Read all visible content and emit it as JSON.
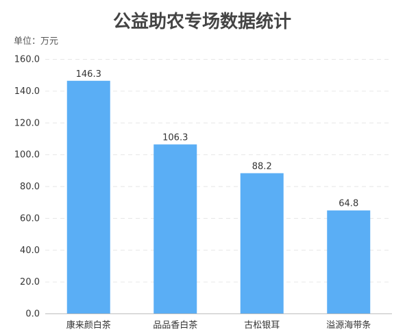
{
  "chart_data": {
    "type": "bar",
    "title": "公益助农专场数据统计",
    "unit_label": "单位：万元",
    "categories": [
      "康来颜白茶",
      "品品香白茶",
      "古松银耳",
      "溢源海带条"
    ],
    "values": [
      146.3,
      106.3,
      88.2,
      64.8
    ],
    "value_labels": [
      "146.3",
      "106.3",
      "88.2",
      "64.8"
    ],
    "yticks": [
      "0.0",
      "20.0",
      "40.0",
      "60.0",
      "80.0",
      "100.0",
      "120.0",
      "140.0",
      "160.0"
    ],
    "ylim": [
      0,
      160
    ],
    "grid": true,
    "bar_color": "#5aaef5"
  }
}
